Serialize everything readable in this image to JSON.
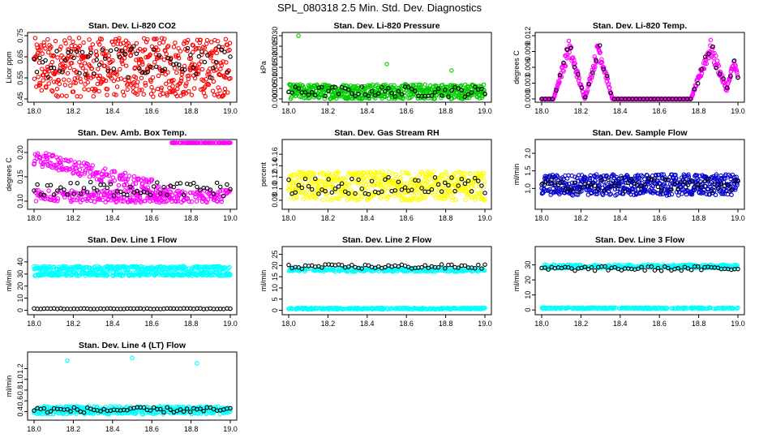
{
  "figure": {
    "title": "SPL_080318  2.5 Min. Std. Dev. Diagnostics"
  },
  "chart_data": [
    {
      "type": "scatter",
      "title": "Stan. Dev. Li-820 CO2",
      "xlabel": "",
      "ylabel": "Licor ppm",
      "xlim": [
        18.0,
        19.0
      ],
      "ylim": [
        0.45,
        0.75
      ],
      "xticks": [
        "18.0",
        "18.2",
        "18.4",
        "18.6",
        "18.8",
        "19.0"
      ],
      "yticks": [
        "0.45",
        "0.55",
        "0.65",
        "0.75"
      ],
      "series": [
        {
          "color": "#ff0000",
          "x": [
            18.0,
            19.0
          ],
          "y_range": [
            0.46,
            0.74
          ],
          "count": 520,
          "x_start": 18.0,
          "x_end": 19.0
        },
        {
          "color": "#000000",
          "x": [
            18.0,
            19.0
          ],
          "y_range": [
            0.55,
            0.7
          ],
          "count": 70,
          "x_start": 18.0,
          "x_end": 19.0
        }
      ]
    },
    {
      "type": "scatter",
      "title": "Stan. Dev. Li-820 Pressure",
      "xlabel": "",
      "ylabel": "kPa",
      "xlim": [
        18.0,
        19.0
      ],
      "ylim": [
        0.0,
        0.03
      ],
      "xticks": [
        "18.0",
        "18.2",
        "18.4",
        "18.6",
        "18.8",
        "19.0"
      ],
      "yticks": [
        "0.000",
        "0.005",
        "0.010",
        "0.015",
        "0.020",
        "0.025",
        "0.030"
      ],
      "series": [
        {
          "color": "#00cc00",
          "y_range": [
            0.0,
            0.007
          ],
          "count": 520,
          "x_start": 18.0,
          "x_end": 19.0
        },
        {
          "color": "#000000",
          "y_range": [
            0.001,
            0.006
          ],
          "count": 60,
          "x_start": 18.0,
          "x_end": 19.0
        }
      ],
      "outliers": [
        {
          "x": 18.05,
          "y": 0.03
        },
        {
          "x": 18.5,
          "y": 0.0165
        },
        {
          "x": 18.83,
          "y": 0.0135
        }
      ]
    },
    {
      "type": "scatter",
      "title": "Stan. Dev. Li-820 Temp.",
      "xlabel": "",
      "ylabel": "degrees C",
      "xlim": [
        18.0,
        19.0
      ],
      "ylim": [
        0.0,
        0.012
      ],
      "xticks": [
        "18.0",
        "18.2",
        "18.4",
        "18.6",
        "18.8",
        "19.0"
      ],
      "yticks": [
        "0.000",
        "0.003",
        "0.006",
        "0.009",
        "0.012"
      ],
      "series": [
        {
          "color": "#ff00ff",
          "pattern": "periodic-humps",
          "count": 420,
          "x_start": 18.0,
          "x_end": 19.0
        },
        {
          "color": "#000000",
          "pattern": "periodic-humps",
          "count": 55,
          "x_start": 18.0,
          "x_end": 19.0
        }
      ]
    },
    {
      "type": "scatter",
      "title": "Stan. Dev. Amb. Box Temp.",
      "xlabel": "",
      "ylabel": "degrees C",
      "xlim": [
        18.0,
        19.0
      ],
      "ylim": [
        0.09,
        0.22
      ],
      "xticks": [
        "18.0",
        "18.2",
        "18.4",
        "18.6",
        "18.8",
        "19.0"
      ],
      "yticks": [
        "0.10",
        "0.15",
        "0.20"
      ],
      "series": [
        {
          "color": "#ff00ff",
          "pattern": "two-bands",
          "count": 520,
          "x_start": 18.0,
          "x_end": 19.0
        },
        {
          "color": "#000000",
          "y_range": [
            0.11,
            0.14
          ],
          "count": 60,
          "x_start": 18.0,
          "x_end": 19.0
        }
      ]
    },
    {
      "type": "scatter",
      "title": "Stan. Dev. Gas Stream RH",
      "xlabel": "",
      "ylabel": "percent",
      "xlim": [
        18.0,
        19.0
      ],
      "ylim": [
        0.07,
        0.18
      ],
      "xticks": [
        "18.0",
        "18.2",
        "18.4",
        "18.6",
        "18.8",
        "19.0"
      ],
      "yticks": [
        "0.08",
        "0.10",
        "0.12",
        "0.14",
        "0.16"
      ],
      "series": [
        {
          "color": "#ffff00",
          "y_range": [
            0.08,
            0.13
          ],
          "count": 520,
          "x_start": 18.0,
          "x_end": 19.0
        },
        {
          "color": "#000000",
          "y_range": [
            0.09,
            0.12
          ],
          "count": 60,
          "x_start": 18.0,
          "x_end": 19.0
        }
      ]
    },
    {
      "type": "scatter",
      "title": "Stan. Dev. Sample Flow",
      "xlabel": "",
      "ylabel": "ml/min",
      "xlim": [
        18.0,
        19.0
      ],
      "ylim": [
        0.5,
        2.3
      ],
      "xticks": [
        "18.0",
        "18.2",
        "18.4",
        "18.6",
        "18.8",
        "19.0"
      ],
      "yticks": [
        "1.0",
        "1.5",
        "2.0"
      ],
      "series": [
        {
          "color": "#0000cc",
          "y_range": [
            0.8,
            1.4
          ],
          "count": 520,
          "x_start": 18.0,
          "x_end": 19.0
        },
        {
          "color": "#000000",
          "y_range": [
            0.9,
            1.3
          ],
          "count": 60,
          "x_start": 18.0,
          "x_end": 19.0
        }
      ]
    },
    {
      "type": "scatter",
      "title": "Stan. Dev. Line 1 Flow",
      "xlabel": "",
      "ylabel": "ml/min",
      "xlim": [
        18.0,
        19.0
      ],
      "ylim": [
        -1,
        50
      ],
      "xticks": [
        "18.0",
        "18.2",
        "18.4",
        "18.6",
        "18.8",
        "19.0"
      ],
      "yticks": [
        "0",
        "10",
        "20",
        "30",
        "40"
      ],
      "series": [
        {
          "color": "#00ffff",
          "pattern": "two-bands",
          "count": 520,
          "x_start": 18.0,
          "x_end": 19.0
        },
        {
          "color": "#000000",
          "y_range": [
            1,
            1.5
          ],
          "count": 60,
          "x_start": 18.0,
          "x_end": 19.0
        }
      ]
    },
    {
      "type": "scatter",
      "title": "Stan. Dev. Line 2 Flow",
      "xlabel": "",
      "ylabel": "ml/min",
      "xlim": [
        18.0,
        19.0
      ],
      "ylim": [
        -0.5,
        27
      ],
      "xticks": [
        "18.0",
        "18.2",
        "18.4",
        "18.6",
        "18.8",
        "19.0"
      ],
      "yticks": [
        "0",
        "5",
        "10",
        "15",
        "20",
        "25"
      ],
      "series": [
        {
          "color": "#00ffff",
          "pattern": "two-bands",
          "count": 520,
          "x_start": 18.0,
          "x_end": 19.0
        },
        {
          "color": "#000000",
          "y_range": [
            18.5,
            20.5
          ],
          "count": 60,
          "x_start": 18.0,
          "x_end": 19.0
        }
      ]
    },
    {
      "type": "scatter",
      "title": "Stan. Dev. Line 3 Flow",
      "xlabel": "",
      "ylabel": "ml/min",
      "xlim": [
        18.0,
        19.0
      ],
      "ylim": [
        -1,
        40
      ],
      "xticks": [
        "18.0",
        "18.2",
        "18.4",
        "18.6",
        "18.8",
        "19.0"
      ],
      "yticks": [
        "0",
        "10",
        "20",
        "30"
      ],
      "series": [
        {
          "color": "#00ffff",
          "pattern": "two-bands",
          "count": 520,
          "x_start": 18.0,
          "x_end": 19.0
        },
        {
          "color": "#000000",
          "y_range": [
            26,
            29
          ],
          "count": 60,
          "x_start": 18.0,
          "x_end": 19.0
        }
      ]
    },
    {
      "type": "scatter",
      "title": "Stan. Dev. Line 4 (LT) Flow",
      "xlabel": "",
      "ylabel": "ml/min",
      "xlim": [
        18.0,
        19.0
      ],
      "ylim": [
        0.3,
        1.45
      ],
      "xticks": [
        "18.0",
        "18.2",
        "18.4",
        "18.6",
        "18.8",
        "19.0"
      ],
      "yticks": [
        "0.4",
        "0.6",
        "0.8",
        "1.0",
        "1.2"
      ],
      "series": [
        {
          "color": "#00ffff",
          "y_range": [
            0.35,
            0.5
          ],
          "count": 420,
          "x_start": 18.0,
          "x_end": 19.0
        },
        {
          "color": "#000000",
          "y_range": [
            0.38,
            0.48
          ],
          "count": 60,
          "x_start": 18.0,
          "x_end": 19.0
        }
      ],
      "outliers": [
        {
          "x": 18.17,
          "y": 1.35
        },
        {
          "x": 18.5,
          "y": 1.4
        },
        {
          "x": 18.83,
          "y": 1.3
        }
      ]
    }
  ]
}
